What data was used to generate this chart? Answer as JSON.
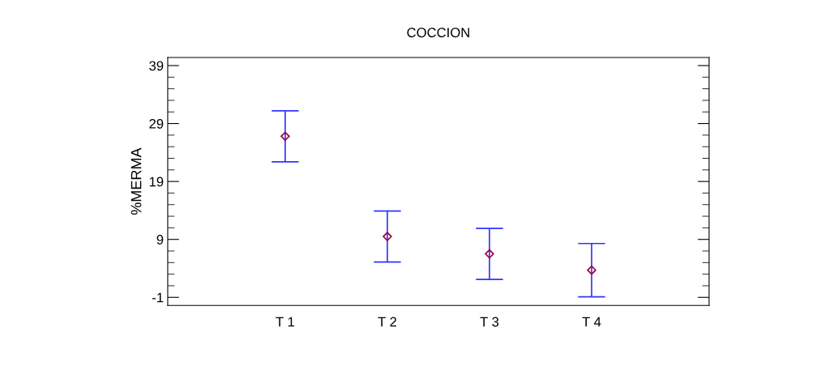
{
  "chart_data": {
    "type": "scatter",
    "title": "COCCION",
    "ylabel": "%MERMA",
    "categories": [
      "T 1",
      "T 2",
      "T 3",
      "T 4"
    ],
    "series": [
      {
        "color": "#990033",
        "values": [
          26.8,
          9.5,
          6.5,
          3.7
        ],
        "errors": [
          4.4,
          4.4,
          4.4,
          4.6
        ]
      }
    ],
    "ylim": [
      -2.4,
      40.4
    ],
    "yticks": [
      -1,
      9,
      19,
      29,
      39
    ],
    "marker": "diamond",
    "grid": false,
    "legend": false
  }
}
